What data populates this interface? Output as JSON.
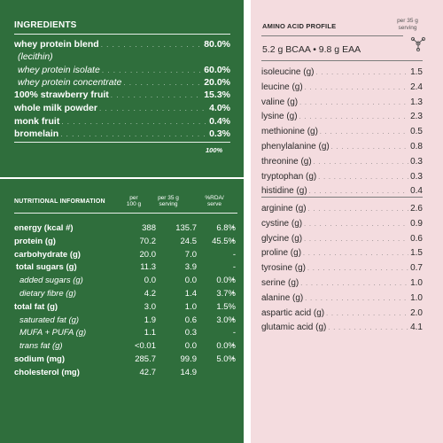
{
  "ingredients": {
    "title": "INGREDIENTS",
    "items": [
      {
        "label": "whey protein blend",
        "value": "80.0%",
        "style": "bold"
      },
      {
        "label": "(lecithin)",
        "value": "",
        "style": "ital"
      },
      {
        "label": "whey protein isolate",
        "value": "60.0%",
        "style": "ital"
      },
      {
        "label": "whey protein concentrate",
        "value": "20.0%",
        "style": "ital"
      },
      {
        "label": "100% strawberry fruit",
        "value": "15.3%",
        "style": "bold"
      },
      {
        "label": "whole milk powder",
        "value": "4.0%",
        "style": "bold"
      },
      {
        "label": "monk fruit",
        "value": "0.4%",
        "style": "bold"
      },
      {
        "label": "bromelain",
        "value": "0.3%",
        "style": "bold"
      }
    ],
    "total": "100%"
  },
  "nutrition": {
    "title": "NUTRITIONAL INFORMATION",
    "col_per100": "per\n100 g",
    "col_per35": "per 35 g\nserving",
    "col_rda": "%RDA/\nserve",
    "rows": [
      {
        "label": "energy (kcal #)",
        "v1": "388",
        "v2": "135.7",
        "v3": "6.8%",
        "dot": "•",
        "style": "bold"
      },
      {
        "label": "protein (g)",
        "v1": "70.2",
        "v2": "24.5",
        "v3": "45.5%",
        "dot": "•",
        "style": "bold"
      },
      {
        "label": "carbohydrate (g)",
        "v1": "20.0",
        "v2": "7.0",
        "v3": "-",
        "dot": "",
        "style": "bold"
      },
      {
        "label": "total sugars (g)",
        "v1": "11.3",
        "v2": "3.9",
        "v3": "-",
        "dot": "",
        "style": "bold",
        "indent": 2
      },
      {
        "label": "added sugars (g)",
        "v1": "0.0",
        "v2": "0.0",
        "v3": "0.0%",
        "dot": "•",
        "style": "ital",
        "indent": 6
      },
      {
        "label": "dietary fibre (g)",
        "v1": "4.2",
        "v2": "1.4",
        "v3": "3.7%",
        "dot": "•",
        "style": "ital",
        "indent": 6
      },
      {
        "label": "total fat (g)",
        "v1": "3.0",
        "v2": "1.0",
        "v3": "1.5%",
        "dot": "",
        "style": "bold"
      },
      {
        "label": "saturated fat (g)",
        "v1": "1.9",
        "v2": "0.6",
        "v3": "3.0%",
        "dot": "•",
        "style": "ital",
        "indent": 6
      },
      {
        "label": "MUFA + PUFA (g)",
        "v1": "1.1",
        "v2": "0.3",
        "v3": "-",
        "dot": "",
        "style": "ital",
        "indent": 6
      },
      {
        "label": "trans fat (g)",
        "v1": "<0.01",
        "v2": "0.0",
        "v3": "0.0%",
        "dot": "•",
        "style": "ital",
        "indent": 6
      },
      {
        "label": "sodium (mg)",
        "v1": "285.7",
        "v2": "99.9",
        "v3": "5.0%",
        "dot": "•",
        "style": "bold"
      },
      {
        "label": "cholesterol (mg)",
        "v1": "42.7",
        "v2": "14.9",
        "v3": "",
        "dot": "",
        "style": "bold"
      }
    ]
  },
  "amino": {
    "title": "AMINO ACID PROFILE",
    "serving": "per 35 g\nserving",
    "summary": "5.2 g BCAA • 9.8 g EAA",
    "group1": [
      {
        "label": "isoleucine (g)",
        "value": "1.5"
      },
      {
        "label": "leucine (g)",
        "value": "2.4"
      },
      {
        "label": "valine (g)",
        "value": "1.3"
      },
      {
        "label": "lysine (g)",
        "value": "2.3"
      },
      {
        "label": "methionine (g)",
        "value": "0.5"
      },
      {
        "label": "phenylalanine (g)",
        "value": "0.8"
      },
      {
        "label": "threonine (g)",
        "value": "0.3"
      },
      {
        "label": "tryptophan (g)",
        "value": "0.3"
      },
      {
        "label": "histidine (g)",
        "value": "0.4"
      }
    ],
    "group2": [
      {
        "label": "arginine (g)",
        "value": "2.6"
      },
      {
        "label": "cystine (g)",
        "value": "0.9"
      },
      {
        "label": "glycine (g)",
        "value": "0.6"
      },
      {
        "label": "proline (g)",
        "value": "1.5"
      },
      {
        "label": "tyrosine (g)",
        "value": "0.7"
      },
      {
        "label": "serine (g)",
        "value": "1.0"
      },
      {
        "label": "alanine (g)",
        "value": "1.0"
      },
      {
        "label": "aspartic acid (g)",
        "value": "2.0"
      },
      {
        "label": "glutamic acid (g)",
        "value": "4.1"
      }
    ]
  },
  "colors": {
    "green": "#2f6e3c",
    "pink": "#f4dcdf",
    "text_dark": "#2a2a2a"
  },
  "icons": {
    "molecule": "molecule-icon"
  }
}
